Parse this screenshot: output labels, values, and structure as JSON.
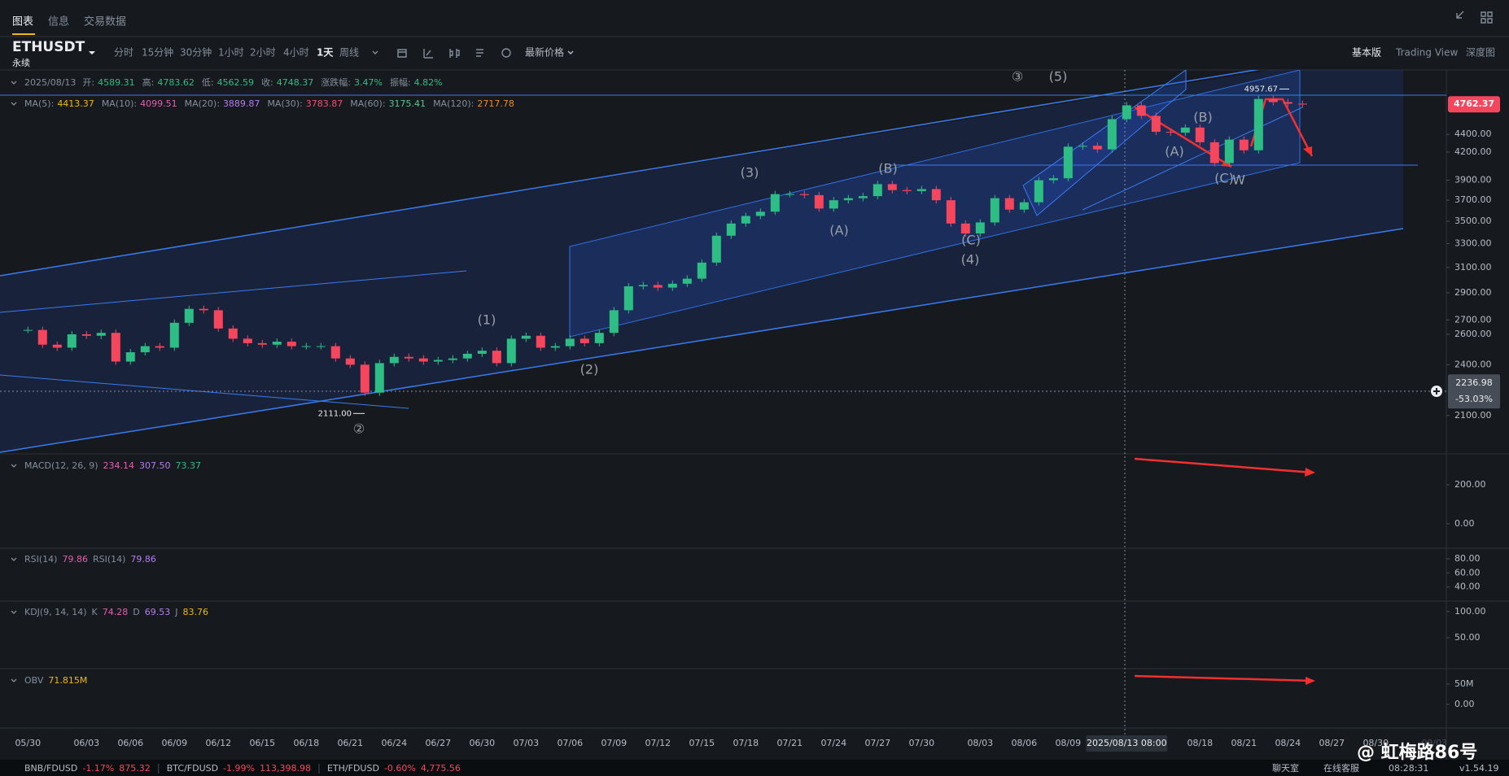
{
  "header": {
    "tabs": [
      "图表",
      "信息",
      "交易数据"
    ],
    "symbol": "ETHUSDT",
    "contract": "永续",
    "intervals": [
      "分时",
      "15分钟",
      "30分钟",
      "1小时",
      "2小时",
      "4小时",
      "1天",
      "周线"
    ],
    "price_type": "最新价格",
    "views": [
      "基本版",
      "Trading View",
      "深度图"
    ]
  },
  "info": {
    "date": "2025/08/13",
    "fields": [
      {
        "label": "开:",
        "value": "4589.31"
      },
      {
        "label": "高:",
        "value": "4783.62"
      },
      {
        "label": "低:",
        "value": "4562.59"
      },
      {
        "label": "收:",
        "value": "4748.37"
      },
      {
        "label": "涨跌幅:",
        "value": "3.47%"
      },
      {
        "label": "振幅:",
        "value": "4.82%"
      }
    ]
  },
  "ma": [
    {
      "label": "MA(5):",
      "value": "4413.37",
      "color": "#f0b90b"
    },
    {
      "label": "MA(10):",
      "value": "4099.51",
      "color": "#e35fb1"
    },
    {
      "label": "MA(20):",
      "value": "3889.87",
      "color": "#b57cf0"
    },
    {
      "label": "MA(30):",
      "value": "3783.87",
      "color": "#f0506e"
    },
    {
      "label": "MA(60):",
      "value": "3175.41",
      "color": "#5cc38f"
    },
    {
      "label": "MA(120):",
      "value": "2717.78",
      "color": "#f08a24"
    }
  ],
  "chart_data": {
    "type": "candlestick",
    "log": true,
    "up_color": "#2ebd85",
    "down_color": "#f6465d",
    "categories": [
      "05/30",
      null,
      null,
      null,
      "06/03",
      null,
      null,
      "06/06",
      null,
      null,
      "06/09",
      null,
      null,
      "06/12",
      null,
      null,
      "06/15",
      null,
      null,
      "06/18",
      null,
      null,
      "06/21",
      null,
      null,
      "06/24",
      null,
      null,
      "06/27",
      null,
      null,
      "06/30",
      null,
      null,
      "07/03",
      null,
      null,
      "07/06",
      null,
      null,
      "07/09",
      null,
      null,
      "07/12",
      null,
      null,
      "07/15",
      null,
      null,
      "07/18",
      null,
      null,
      "07/21",
      null,
      null,
      "07/24",
      null,
      null,
      "07/27",
      null,
      null,
      "07/30",
      null,
      null,
      null,
      "08/03",
      null,
      null,
      "08/06",
      null,
      null,
      "08/09",
      null,
      null,
      null,
      null,
      null,
      null,
      null,
      null,
      "08/18",
      null,
      null,
      "08/21",
      null,
      null,
      "08/24",
      null,
      null,
      "08/27",
      null,
      null,
      "08/30",
      null,
      null,
      null,
      "09/03"
    ],
    "values": [
      2630,
      2530,
      2510,
      2600,
      2590,
      2610,
      2420,
      2480,
      2520,
      2510,
      2680,
      2780,
      2770,
      2640,
      2570,
      2540,
      2530,
      2550,
      2520,
      2520,
      2520,
      2440,
      2400,
      2230,
      2410,
      2450,
      2440,
      2420,
      2430,
      2440,
      2470,
      2490,
      2410,
      2570,
      2590,
      2510,
      2520,
      2570,
      2540,
      2610,
      2770,
      2950,
      2960,
      2940,
      2970,
      3010,
      3140,
      3370,
      3480,
      3550,
      3590,
      3760,
      3760,
      3750,
      3620,
      3700,
      3720,
      3740,
      3860,
      3800,
      3790,
      3810,
      3700,
      3480,
      3390,
      3490,
      3720,
      3610,
      3680,
      3900,
      3920,
      4260,
      4270,
      4230,
      4580,
      4750,
      4620,
      4430,
      4420,
      4480,
      4310,
      4080,
      4340,
      4220,
      4830,
      4790,
      4770,
      4760,
      null,
      null,
      null,
      null,
      null,
      null,
      null,
      null,
      null
    ],
    "ylim": [
      1898,
      5213
    ],
    "yticks": [
      {
        "value": 4400,
        "label": "4400.00"
      },
      {
        "value": 4200,
        "label": "4200.00"
      },
      {
        "value": 3900,
        "label": "3900.00"
      },
      {
        "value": 3700,
        "label": "3700.00"
      },
      {
        "value": 3500,
        "label": "3500.00"
      },
      {
        "value": 3300,
        "label": "3300.00"
      },
      {
        "value": 3100,
        "label": "3100.00"
      },
      {
        "value": 2900,
        "label": "2900.00"
      },
      {
        "value": 2700,
        "label": "2700.00"
      },
      {
        "value": 2600,
        "label": "2600.00"
      },
      {
        "value": 2400,
        "label": "2400.00"
      },
      {
        "value": 2100,
        "label": "2100.00"
      }
    ],
    "last_price": {
      "value": 4762.37,
      "label": "4762.37"
    },
    "high": {
      "value": 4957.67,
      "label": "4957.67"
    },
    "low": {
      "value": 2111,
      "label": "2111.00"
    },
    "crosshair": {
      "date": "2025/08/13 08:00",
      "price": {
        "value": 2236.98,
        "label": "2236.98"
      },
      "change": "-53.03%"
    },
    "waves": [
      "③",
      "(5)",
      "(3)",
      "(B)",
      "(A)",
      "(C)",
      "(4)",
      "(1)",
      "(2)",
      "②",
      "(B)",
      "(A)",
      "(C)",
      "W"
    ]
  },
  "indicators": [
    {
      "parts": [
        {
          "text": "MACD(12, 26, 9)",
          "color": "#848e9c"
        },
        {
          "text": "234.14",
          "color": "#e35fb1"
        },
        {
          "text": "307.50",
          "color": "#b57cf0"
        },
        {
          "text": "73.37",
          "color": "#2ebd85"
        }
      ],
      "ylim": [
        -125,
        358
      ],
      "yticks": [
        {
          "value": 200,
          "label": "200.00"
        },
        {
          "value": 0,
          "label": "0.00"
        }
      ]
    },
    {
      "parts": [
        {
          "text": "RSI(14)",
          "color": "#848e9c"
        },
        {
          "text": "79.86",
          "color": "#e35fb1"
        },
        {
          "text": "RSI(14)",
          "color": "#848e9c"
        },
        {
          "text": "79.86",
          "color": "#b57cf0"
        }
      ],
      "ylim": [
        20,
        95
      ],
      "yticks": [
        {
          "value": 80,
          "label": "80.00"
        },
        {
          "value": 60,
          "label": "60.00"
        },
        {
          "value": 40,
          "label": "40.00"
        }
      ]
    },
    {
      "parts": [
        {
          "text": "KDJ(9, 14, 14)",
          "color": "#848e9c"
        },
        {
          "text": "K",
          "color": "#848e9c"
        },
        {
          "text": "74.28",
          "color": "#e35fb1"
        },
        {
          "text": "D",
          "color": "#848e9c"
        },
        {
          "text": "69.53",
          "color": "#b57cf0"
        },
        {
          "text": "J",
          "color": "#848e9c"
        },
        {
          "text": "83.76",
          "color": "#f0b90b"
        }
      ],
      "ylim": [
        -9,
        120
      ],
      "yticks": [
        {
          "value": 100,
          "label": "100.00"
        },
        {
          "value": 50,
          "label": "50.00"
        }
      ]
    },
    {
      "parts": [
        {
          "text": "OBV",
          "color": "#848e9c"
        },
        {
          "text": "71.815M",
          "color": "#f0b90b"
        }
      ],
      "ylim": [
        -58000000,
        88000000
      ],
      "yticks": [
        {
          "value": 50000000,
          "label": "50M"
        },
        {
          "value": 0,
          "label": "0.00"
        }
      ]
    }
  ],
  "ticker": [
    {
      "pair": "BNB/FDUSD",
      "change": "-1.17%",
      "price": "875.32"
    },
    {
      "pair": "BTC/FDUSD",
      "change": "-1.99%",
      "price": "113,398.98"
    },
    {
      "pair": "ETH/FDUSD",
      "change": "-0.60%",
      "price": "4,775.56"
    }
  ],
  "status": {
    "chat": "聊天室",
    "support": "在线客服",
    "time": "08:28:31",
    "version": "v1.54.19"
  },
  "watermark": "@ 虹梅路86号"
}
